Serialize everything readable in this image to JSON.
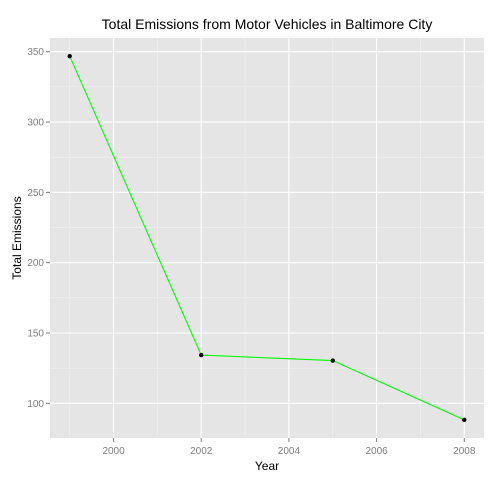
{
  "chart_data": {
    "type": "line",
    "title": "Total Emissions from Motor Vehicles in Baltimore City",
    "xlabel": "Year",
    "ylabel": "Total Emissions",
    "x": [
      1999,
      2002,
      2005,
      2008
    ],
    "series": [
      {
        "values": [
          346.82,
          134.31,
          130.43,
          88.28
        ]
      }
    ],
    "xlim": [
      1998.55,
      2008.45
    ],
    "ylim": [
      75.35,
      359.75
    ],
    "x_ticks": [
      2000,
      2002,
      2004,
      2006,
      2008
    ],
    "y_ticks": [
      100,
      150,
      200,
      250,
      300,
      350
    ],
    "grid": true,
    "legend": "none",
    "colors": {
      "line": "#00ff00",
      "point": "#000000",
      "panel": "#e5e5e5",
      "grid_major": "#ffffff",
      "grid_minor": "#f2f2f2",
      "tick_label": "#7f7f7f"
    }
  }
}
